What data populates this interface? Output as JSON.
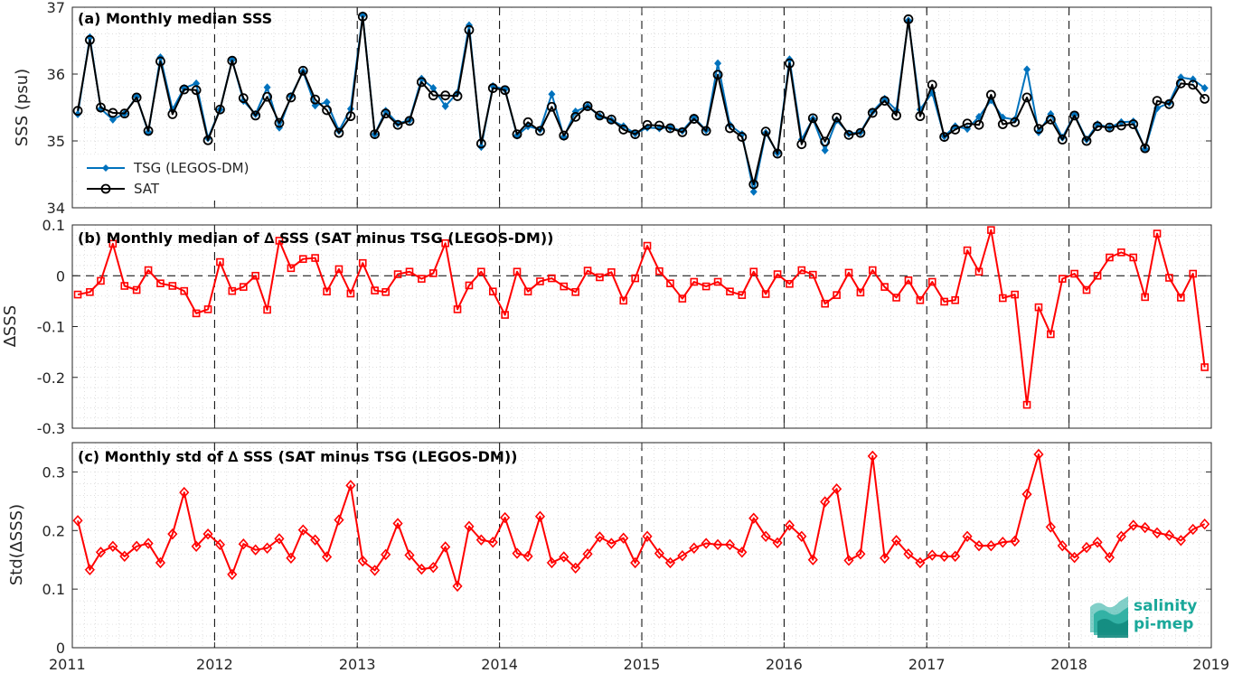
{
  "colors": {
    "tsg": "#0072BD",
    "sat": "#000000",
    "delta": "#FF0000",
    "logo": "#1AA89A"
  },
  "logo": {
    "line1": "salinity",
    "line2": "pi-mep",
    "icon": "salinity-wave-icon"
  },
  "chart_data": [
    {
      "type": "line",
      "title": "(a) Monthly median SSS",
      "ylabel": "SSS (psu)",
      "xlabel": "",
      "xlim": [
        "2011-01-01",
        "2019-01-01"
      ],
      "ylim": [
        34,
        37
      ],
      "yticks": [
        34,
        35,
        36,
        37
      ],
      "xticks": [
        "2011",
        "2012",
        "2013",
        "2014",
        "2015",
        "2016",
        "2017",
        "2018",
        "2019"
      ],
      "grid": true,
      "legend": "bottom-left",
      "x": [
        "2011-01-15",
        "2011-02-15",
        "2011-03-15",
        "2011-04-15",
        "2011-05-15",
        "2011-06-15",
        "2011-07-15",
        "2011-08-15",
        "2011-09-15",
        "2011-10-15",
        "2011-11-15",
        "2011-12-15",
        "2012-01-15",
        "2012-02-15",
        "2012-03-15",
        "2012-04-15",
        "2012-05-15",
        "2012-06-15",
        "2012-07-15",
        "2012-08-15",
        "2012-09-15",
        "2012-10-15",
        "2012-11-15",
        "2012-12-15",
        "2013-01-15",
        "2013-02-15",
        "2013-03-15",
        "2013-04-15",
        "2013-05-15",
        "2013-06-15",
        "2013-07-15",
        "2013-08-15",
        "2013-09-15",
        "2013-10-15",
        "2013-11-15",
        "2013-12-15",
        "2014-01-15",
        "2014-02-15",
        "2014-03-15",
        "2014-04-15",
        "2014-05-15",
        "2014-06-15",
        "2014-07-15",
        "2014-08-15",
        "2014-09-15",
        "2014-10-15",
        "2014-11-15",
        "2014-12-15",
        "2015-01-15",
        "2015-02-15",
        "2015-03-15",
        "2015-04-15",
        "2015-05-15",
        "2015-06-15",
        "2015-07-15",
        "2015-08-15",
        "2015-09-15",
        "2015-10-15",
        "2015-11-15",
        "2015-12-15",
        "2016-01-15",
        "2016-02-15",
        "2016-03-15",
        "2016-04-15",
        "2016-05-15",
        "2016-06-15",
        "2016-07-15",
        "2016-08-15",
        "2016-09-15",
        "2016-10-15",
        "2016-11-15",
        "2016-12-15",
        "2017-01-15",
        "2017-02-15",
        "2017-03-15",
        "2017-04-15",
        "2017-05-15",
        "2017-06-15",
        "2017-07-15",
        "2017-08-15",
        "2017-09-15",
        "2017-10-15",
        "2017-11-15",
        "2017-12-15",
        "2018-01-15",
        "2018-02-15",
        "2018-03-15",
        "2018-04-15",
        "2018-05-15",
        "2018-06-15",
        "2018-07-15",
        "2018-08-15",
        "2018-09-15",
        "2018-10-15",
        "2018-11-15",
        "2018-12-15"
      ],
      "series": [
        {
          "name": "TSG (LEGOS-DM)",
          "marker": "diamond-filled",
          "values": [
            35.4,
            36.55,
            35.48,
            35.32,
            35.41,
            35.66,
            35.13,
            36.25,
            35.47,
            35.79,
            35.86,
            35.04,
            35.47,
            36.21,
            35.6,
            35.4,
            35.8,
            35.2,
            35.67,
            36.04,
            35.53,
            35.58,
            35.15,
            35.48,
            36.88,
            35.1,
            35.45,
            35.26,
            35.31,
            35.93,
            35.79,
            35.52,
            35.72,
            36.73,
            34.91,
            35.82,
            35.77,
            35.08,
            35.22,
            35.17,
            35.7,
            35.06,
            35.44,
            35.52,
            35.37,
            35.31,
            35.22,
            35.11,
            35.2,
            35.19,
            35.2,
            35.15,
            35.35,
            35.16,
            36.16,
            35.24,
            35.1,
            34.24,
            35.12,
            34.82,
            36.22,
            35.02,
            35.33,
            34.86,
            35.31,
            35.11,
            35.13,
            35.44,
            35.63,
            35.46,
            36.8,
            35.47,
            35.72,
            35.07,
            35.22,
            35.18,
            35.36,
            35.61,
            35.35,
            35.32,
            36.07,
            35.13,
            35.4,
            35.05,
            35.39,
            35.02,
            35.25,
            35.2,
            35.28,
            35.29,
            34.88,
            35.49,
            35.57,
            35.95,
            35.92,
            35.79
          ]
        },
        {
          "name": "SAT",
          "marker": "circle-open",
          "values": [
            35.45,
            36.51,
            35.5,
            35.42,
            35.41,
            35.65,
            35.15,
            36.19,
            35.4,
            35.77,
            35.76,
            35.01,
            35.47,
            36.2,
            35.64,
            35.38,
            35.66,
            35.27,
            35.65,
            36.05,
            35.62,
            35.46,
            35.12,
            35.37,
            36.86,
            35.1,
            35.41,
            35.24,
            35.3,
            35.88,
            35.68,
            35.68,
            35.67,
            36.66,
            34.96,
            35.79,
            35.76,
            35.1,
            35.28,
            35.15,
            35.51,
            35.08,
            35.36,
            35.52,
            35.38,
            35.32,
            35.17,
            35.1,
            35.24,
            35.23,
            35.19,
            35.13,
            35.33,
            35.15,
            35.99,
            35.19,
            35.06,
            34.35,
            35.14,
            34.81,
            36.16,
            34.95,
            35.34,
            34.99,
            35.35,
            35.09,
            35.12,
            35.42,
            35.6,
            35.38,
            36.82,
            35.37,
            35.84,
            35.06,
            35.17,
            35.26,
            35.24,
            35.69,
            35.25,
            35.28,
            35.65,
            35.18,
            35.32,
            35.02,
            35.38,
            35.0,
            35.22,
            35.2,
            35.23,
            35.25,
            34.89,
            35.6,
            35.55,
            35.86,
            35.84,
            35.63
          ]
        }
      ]
    },
    {
      "type": "line",
      "title": "(b) Monthly median of ∆ SSS (SAT minus TSG (LEGOS-DM))",
      "ylabel": "∆SSS",
      "xlabel": "",
      "xlim": [
        "2011-01-01",
        "2019-01-01"
      ],
      "ylim": [
        -0.3,
        0.1
      ],
      "yticks": [
        -0.3,
        -0.2,
        -0.1,
        0,
        0.1
      ],
      "ytick_labels": [
        "-0.3",
        "-0.2",
        "-0.1",
        "0",
        "0.1"
      ],
      "grid": true,
      "reference_line": 0,
      "series": [
        {
          "marker": "square-open",
          "values": [
            -0.037,
            -0.032,
            -0.01,
            0.063,
            -0.02,
            -0.028,
            0.011,
            -0.015,
            -0.02,
            -0.03,
            -0.074,
            -0.066,
            0.027,
            -0.03,
            -0.022,
            0.0,
            -0.067,
            0.069,
            0.015,
            0.033,
            0.035,
            -0.031,
            0.013,
            -0.035,
            0.025,
            -0.029,
            -0.032,
            0.003,
            0.008,
            -0.006,
            0.005,
            0.064,
            -0.066,
            -0.019,
            0.008,
            -0.031,
            -0.077,
            0.008,
            -0.031,
            -0.011,
            -0.005,
            -0.021,
            -0.032,
            0.01,
            -0.003,
            0.007,
            -0.049,
            -0.005,
            0.059,
            0.009,
            -0.015,
            -0.045,
            -0.012,
            -0.021,
            -0.012,
            -0.031,
            -0.038,
            0.008,
            -0.036,
            0.003,
            -0.016,
            0.011,
            0.002,
            -0.055,
            -0.038,
            0.006,
            -0.033,
            0.011,
            -0.022,
            -0.043,
            -0.009,
            -0.048,
            -0.012,
            -0.051,
            -0.048,
            0.05,
            0.008,
            0.09,
            -0.044,
            -0.037,
            -0.254,
            -0.062,
            -0.115,
            -0.006,
            0.004,
            -0.028,
            0.0,
            0.036,
            0.046,
            0.036,
            -0.042,
            0.083,
            -0.004,
            -0.043,
            0.004,
            -0.18
          ]
        }
      ]
    },
    {
      "type": "line",
      "title": "(c) Monthly std of ∆ SSS (SAT minus TSG (LEGOS-DM))",
      "ylabel": "Std(∆SSS)",
      "xlabel": "",
      "xlim": [
        "2011-01-01",
        "2019-01-01"
      ],
      "ylim": [
        0,
        0.35
      ],
      "yticks": [
        0,
        0.1,
        0.2,
        0.3
      ],
      "ytick_labels": [
        "0",
        "0.1",
        "0.2",
        "0.3"
      ],
      "xticks": [
        "2011",
        "2012",
        "2013",
        "2014",
        "2015",
        "2016",
        "2017",
        "2018",
        "2019"
      ],
      "grid": true,
      "series": [
        {
          "marker": "diamond-open",
          "values": [
            0.217,
            0.133,
            0.163,
            0.173,
            0.156,
            0.173,
            0.178,
            0.145,
            0.194,
            0.265,
            0.173,
            0.194,
            0.176,
            0.125,
            0.177,
            0.167,
            0.17,
            0.186,
            0.153,
            0.201,
            0.184,
            0.155,
            0.218,
            0.277,
            0.148,
            0.132,
            0.159,
            0.212,
            0.158,
            0.134,
            0.137,
            0.172,
            0.105,
            0.207,
            0.184,
            0.18,
            0.222,
            0.161,
            0.156,
            0.224,
            0.145,
            0.155,
            0.136,
            0.16,
            0.189,
            0.178,
            0.187,
            0.145,
            0.19,
            0.161,
            0.145,
            0.157,
            0.17,
            0.178,
            0.176,
            0.176,
            0.163,
            0.221,
            0.19,
            0.179,
            0.209,
            0.19,
            0.15,
            0.249,
            0.271,
            0.149,
            0.16,
            0.327,
            0.153,
            0.183,
            0.16,
            0.145,
            0.158,
            0.156,
            0.156,
            0.19,
            0.174,
            0.174,
            0.18,
            0.182,
            0.262,
            0.33,
            0.206,
            0.174,
            0.154,
            0.171,
            0.18,
            0.154,
            0.19,
            0.209,
            0.205,
            0.196,
            0.192,
            0.183,
            0.202,
            0.211
          ]
        }
      ]
    }
  ]
}
